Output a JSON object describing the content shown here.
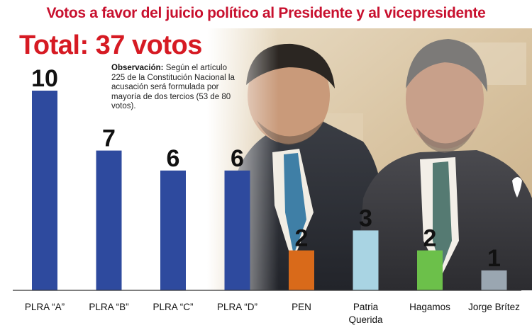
{
  "headline": "Votos a favor del juicio político al Presidente y al vicepresidente",
  "total": "Total: 37 votos",
  "note": {
    "label": "Observación:",
    "text": "Según el artículo 225 de la Constitución Nacional la acusación será formulada por mayoría de dos tercios (53 de 80 votos)."
  },
  "chart_data": {
    "type": "bar",
    "categories": [
      "PLRA “A”",
      "PLRA “B”",
      "PLRA “C”",
      "PLRA “D”",
      "PEN",
      "Patria Querida",
      "Hagamos",
      "Jorge Brítez"
    ],
    "values": [
      10,
      7,
      6,
      6,
      2,
      3,
      2,
      1
    ],
    "data_labels": [
      "10",
      "7",
      "6",
      "6",
      "2",
      "3",
      "2",
      "1"
    ],
    "colors": [
      "#2e4a9e",
      "#2e4a9e",
      "#2e4a9e",
      "#2e4a9e",
      "#d96a1a",
      "#a9d4e3",
      "#6cc04a",
      "#9aa6b1"
    ],
    "ylim": [
      0,
      10
    ],
    "grid": false,
    "legend": "none",
    "title": "",
    "xlabel": "",
    "ylabel": ""
  },
  "colors": {
    "headline": "#c8102e",
    "total": "#d61a23",
    "axis": "#333333"
  }
}
